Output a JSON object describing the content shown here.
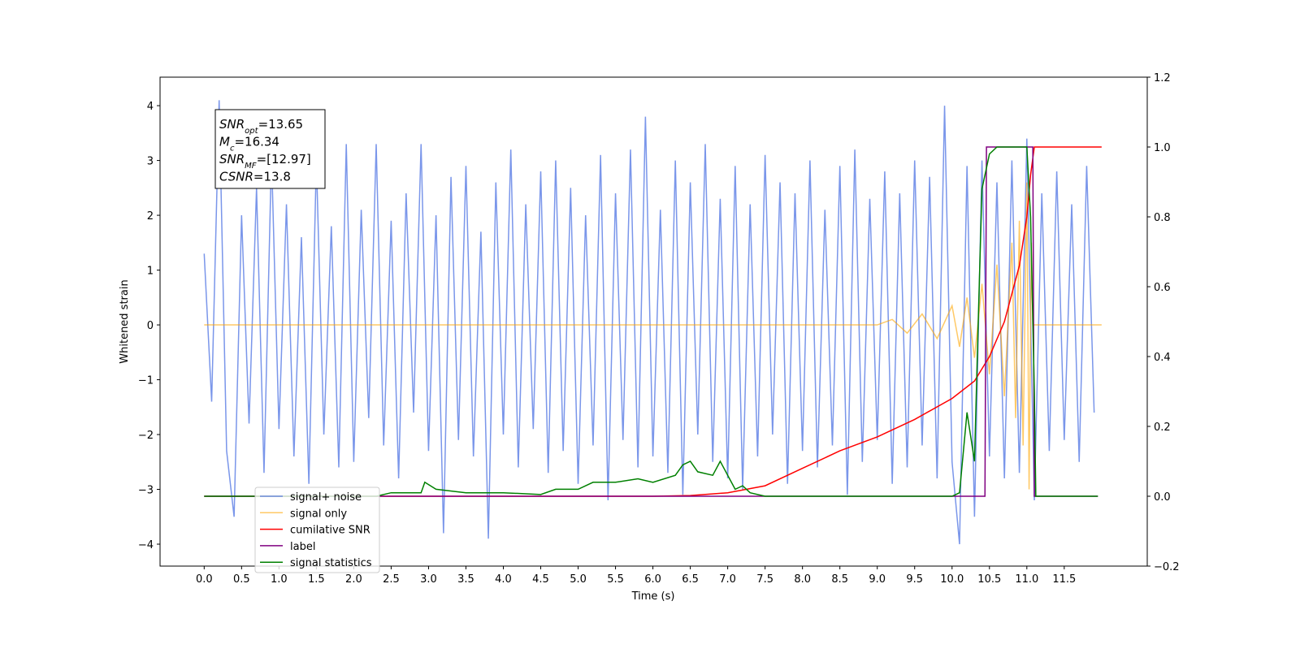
{
  "chart_data": {
    "type": "line",
    "xlabel": "Time (s)",
    "ylabel": "Whitened strain",
    "xlim": [
      -0.59,
      12.61
    ],
    "ylim": [
      -4.4,
      4.52
    ],
    "y2lim": [
      -0.2,
      1.2
    ],
    "grid": false,
    "legend": "lower left",
    "xticks": [
      {
        "value": 0,
        "label": "0.0"
      },
      {
        "value": 0.5,
        "label": "0.5"
      },
      {
        "value": 1,
        "label": "1.0"
      },
      {
        "value": 1.5,
        "label": "1.5"
      },
      {
        "value": 2,
        "label": "2.0"
      },
      {
        "value": 2.5,
        "label": "2.5"
      },
      {
        "value": 3,
        "label": "3.0"
      },
      {
        "value": 3.5,
        "label": "3.5"
      },
      {
        "value": 4,
        "label": "4.0"
      },
      {
        "value": 4.5,
        "label": "4.5"
      },
      {
        "value": 5,
        "label": "5.0"
      },
      {
        "value": 5.5,
        "label": "5.5"
      },
      {
        "value": 6,
        "label": "6.0"
      },
      {
        "value": 6.5,
        "label": "6.5"
      },
      {
        "value": 7,
        "label": "7.0"
      },
      {
        "value": 7.5,
        "label": "7.5"
      },
      {
        "value": 8,
        "label": "8.0"
      },
      {
        "value": 8.5,
        "label": "8.5"
      },
      {
        "value": 9,
        "label": "9.0"
      },
      {
        "value": 9.5,
        "label": "9.5"
      },
      {
        "value": 10,
        "label": "10.0"
      },
      {
        "value": 10.5,
        "label": "10.5"
      },
      {
        "value": 11,
        "label": "11.0"
      },
      {
        "value": 11.5,
        "label": "11.5"
      }
    ],
    "yticks": [
      {
        "value": -4,
        "label": "−4"
      },
      {
        "value": -3,
        "label": "−3"
      },
      {
        "value": -2,
        "label": "−2"
      },
      {
        "value": -1,
        "label": "−1"
      },
      0,
      1,
      2,
      3,
      4
    ],
    "y2ticks": [
      {
        "value": -0.2,
        "label": "−0.2"
      },
      {
        "value": 0,
        "label": "0.0"
      },
      0.2,
      0.4,
      0.6,
      0.8,
      {
        "value": 1,
        "label": "1.0"
      },
      1.2
    ],
    "annotation": [
      {
        "main": "SNR",
        "sub": "opt",
        "rest": "=13.65"
      },
      {
        "main": "M",
        "sub": "c",
        "rest": "=16.34"
      },
      {
        "main": "SNR",
        "sub": "MF",
        "rest": "=[12.97]"
      },
      {
        "main": "CSNR",
        "sub": "",
        "rest": "=13.8"
      }
    ],
    "series": [
      {
        "name": "signal+ noise",
        "color": "#4169e1",
        "opacity": 0.7,
        "axis": "y",
        "x": [
          0,
          0.1,
          0.2,
          0.3,
          0.4,
          0.5,
          0.6,
          0.7,
          0.8,
          0.9,
          1,
          1.1,
          1.2,
          1.3,
          1.4,
          1.5,
          1.6,
          1.7,
          1.8,
          1.9,
          2,
          2.1,
          2.2,
          2.3,
          2.4,
          2.5,
          2.6,
          2.7,
          2.8,
          2.9,
          3,
          3.1,
          3.2,
          3.3,
          3.4,
          3.5,
          3.6,
          3.7,
          3.8,
          3.9,
          4,
          4.1,
          4.2,
          4.3,
          4.4,
          4.5,
          4.6,
          4.7,
          4.8,
          4.9,
          5,
          5.1,
          5.2,
          5.3,
          5.4,
          5.5,
          5.6,
          5.7,
          5.8,
          5.9,
          6,
          6.1,
          6.2,
          6.3,
          6.4,
          6.5,
          6.6,
          6.7,
          6.8,
          6.9,
          7,
          7.1,
          7.2,
          7.3,
          7.4,
          7.5,
          7.6,
          7.7,
          7.8,
          7.9,
          8,
          8.1,
          8.2,
          8.3,
          8.4,
          8.5,
          8.6,
          8.7,
          8.8,
          8.9,
          9,
          9.1,
          9.2,
          9.3,
          9.4,
          9.5,
          9.6,
          9.7,
          9.8,
          9.9,
          10,
          10.1,
          10.2,
          10.3,
          10.4,
          10.5,
          10.6,
          10.7,
          10.8,
          10.9,
          11,
          11.1,
          11.2,
          11.3,
          11.4,
          11.5,
          11.6,
          11.7,
          11.8,
          11.9
        ],
        "values": [
          1.3,
          -1.4,
          4.1,
          -2.3,
          -3.5,
          2.0,
          -1.8,
          2.5,
          -2.7,
          3.1,
          -1.9,
          2.2,
          -2.4,
          1.6,
          -2.9,
          3.0,
          -2.0,
          1.8,
          -2.6,
          3.3,
          -2.5,
          2.1,
          -1.7,
          3.3,
          -2.2,
          1.9,
          -2.8,
          2.4,
          -1.6,
          3.3,
          -2.3,
          2.0,
          -3.8,
          2.7,
          -2.1,
          2.9,
          -2.4,
          1.7,
          -3.9,
          2.6,
          -2.0,
          3.2,
          -2.6,
          2.2,
          -1.9,
          2.8,
          -2.7,
          3.0,
          -2.3,
          2.5,
          -2.9,
          2.0,
          -2.2,
          3.1,
          -3.2,
          2.4,
          -2.1,
          3.2,
          -2.6,
          3.8,
          -2.4,
          2.1,
          -2.7,
          3.0,
          -3.1,
          2.6,
          -2.0,
          3.3,
          -2.5,
          2.3,
          -2.8,
          2.9,
          -3.0,
          2.2,
          -2.4,
          3.1,
          -2.0,
          2.6,
          -2.9,
          2.4,
          -2.3,
          3.0,
          -2.6,
          2.1,
          -2.2,
          2.9,
          -3.1,
          3.2,
          -2.5,
          2.3,
          -2.1,
          2.8,
          -2.9,
          2.4,
          -2.6,
          3.0,
          -2.2,
          2.7,
          -2.8,
          4.0,
          -2.5,
          -4.0,
          2.9,
          -3.5,
          3.0,
          -2.4,
          2.6,
          -2.8,
          3.0,
          -2.7,
          3.4,
          -3.2,
          2.4,
          -2.3,
          2.8,
          -2.1,
          2.2,
          -2.5,
          2.9,
          -1.6
        ]
      },
      {
        "name": "signal only",
        "color": "#ffa500",
        "opacity": 0.6,
        "axis": "y",
        "x": [
          0,
          9.0,
          9.2,
          9.4,
          9.6,
          9.8,
          10.0,
          10.1,
          10.2,
          10.3,
          10.4,
          10.5,
          10.6,
          10.7,
          10.8,
          10.85,
          10.9,
          10.95,
          11.0,
          11.03,
          11.06,
          11.08,
          12.0
        ],
        "values": [
          0,
          0,
          0.1,
          -0.15,
          0.2,
          -0.25,
          0.35,
          -0.4,
          0.5,
          -0.6,
          0.75,
          -0.9,
          1.1,
          -1.3,
          1.5,
          -1.7,
          1.9,
          -2.2,
          2.6,
          -3.0,
          1.5,
          0,
          0
        ]
      },
      {
        "name": "cumilative SNR",
        "color": "#ff0000",
        "opacity": 1,
        "axis": "y2",
        "x": [
          0,
          6,
          6.5,
          7,
          7.5,
          8,
          8.5,
          9,
          9.5,
          10,
          10.3,
          10.5,
          10.7,
          10.9,
          11.0,
          11.05,
          11.1,
          12.0
        ],
        "values": [
          0,
          0,
          0.002,
          0.01,
          0.03,
          0.08,
          0.13,
          0.17,
          0.22,
          0.28,
          0.33,
          0.4,
          0.5,
          0.66,
          0.8,
          0.92,
          1.0,
          1.0
        ]
      },
      {
        "name": "label",
        "color": "#800080",
        "opacity": 1,
        "axis": "y2",
        "x": [
          0,
          10.44,
          10.46,
          11.08,
          11.1,
          11.95
        ],
        "values": [
          0,
          0,
          1,
          1,
          0,
          0
        ]
      },
      {
        "name": "signal statistics",
        "color": "#008000",
        "opacity": 1,
        "axis": "y2",
        "x": [
          0,
          2.3,
          2.5,
          2.9,
          2.95,
          3.1,
          3.5,
          4.0,
          4.5,
          4.7,
          5.0,
          5.2,
          5.5,
          5.8,
          6.0,
          6.3,
          6.4,
          6.5,
          6.6,
          6.8,
          6.9,
          7.1,
          7.2,
          7.3,
          7.5,
          10.0,
          10.1,
          10.2,
          10.3,
          10.35,
          10.4,
          10.5,
          10.6,
          11.0,
          11.05,
          11.1,
          11.12,
          11.95
        ],
        "values": [
          0,
          0,
          0.01,
          0.01,
          0.04,
          0.02,
          0.01,
          0.01,
          0.005,
          0.02,
          0.02,
          0.04,
          0.04,
          0.05,
          0.04,
          0.06,
          0.09,
          0.1,
          0.07,
          0.06,
          0.1,
          0.02,
          0.03,
          0.01,
          0,
          0,
          0.01,
          0.24,
          0.1,
          0.5,
          0.88,
          0.98,
          1.0,
          1.0,
          0.8,
          0.3,
          0,
          0
        ]
      }
    ]
  }
}
